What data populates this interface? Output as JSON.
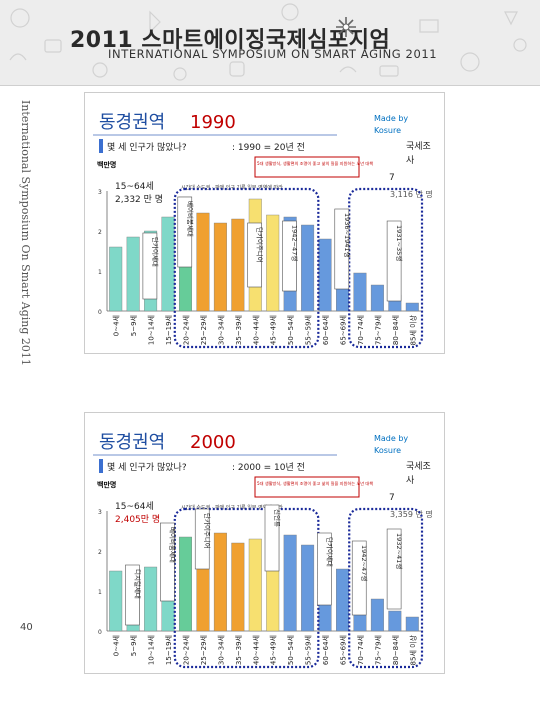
{
  "header": {
    "title_ko": "2011 스마트에이징국제심포지엄",
    "title_en": "INTERNATIONAL SYMPOSIUM ON SMART AGING 2011"
  },
  "side_text": "International Symposium On Smart Aging 2011",
  "page_number": "40",
  "colors": {
    "title_blue": "#1f4ea1",
    "title_red": "#c00000",
    "dotted_navy": "#1a2a9a",
    "made_by": "#0070c0"
  },
  "slides": [
    {
      "title_ko": "동경권역",
      "year": "1990",
      "made_by": "Made by Kosure",
      "question": "몇 세 인구가 많았나?",
      "ref": ": 1990  =  20년 전",
      "unit": "백만명",
      "working_age": "15~64세",
      "working_pop": "2,332 만 명",
      "foreign_label": "국세조사",
      "foreign_num": "7",
      "right_pop": "3,116 만 명",
      "red_box": "5대 생활방식, 생활편의 조명이 좋고 삶의 질을 지원하는 노년 대책",
      "sub_line": "시간대 수도권 · 판매 인구 기록 일부 영역에 따라",
      "chart_data": {
        "type": "bar",
        "categories": [
          "0~4세",
          "5~9세",
          "10~14세",
          "15~19세",
          "20~24세",
          "25~29세",
          "30~34세",
          "35~39세",
          "40~44세",
          "45~49세",
          "50~54세",
          "55~59세",
          "60~64세",
          "65~69세",
          "70~74세",
          "75~79세",
          "80~84세",
          "85세 이상"
        ],
        "values": [
          1.6,
          1.85,
          2.0,
          2.35,
          2.85,
          2.45,
          2.2,
          2.3,
          2.8,
          2.4,
          2.35,
          2.15,
          1.8,
          1.3,
          0.95,
          0.65,
          0.4,
          0.2
        ],
        "bar_colors": [
          "#7fd8c8",
          "#7fd8c8",
          "#7fd8c8",
          "#7fd8c8",
          "#66cc99",
          "#f0a030",
          "#f0a030",
          "#f0a030",
          "#f7e070",
          "#f7e070",
          "#6699dd",
          "#6699dd",
          "#6699dd",
          "#6699dd",
          "#6699dd",
          "#6699dd",
          "#6699dd",
          "#6699dd"
        ],
        "ylim": [
          0,
          3
        ],
        "yticks": [
          "0",
          "1",
          "2",
          "3"
        ]
      },
      "callouts": [
        "단카이세대",
        "베이비붐세대",
        "단카이주니어",
        "1942~47생",
        "1936~1941생",
        "1931~35생"
      ]
    },
    {
      "title_ko": "동경권역",
      "year": "2000",
      "made_by": "Made by Kosure",
      "question": "몇 세 인구가 많았나?",
      "ref": ": 2000  =  10년 전",
      "unit": "백만명",
      "working_age": "15~64세",
      "working_pop": "2,405만 명",
      "foreign_label": "국세조사",
      "foreign_num": "7",
      "right_pop": "3,359 만 명",
      "red_box": "5대 생활방식, 생활편의 조명이 좋고 삶의 질을 지원하는 노년 대책",
      "sub_line": "시간대 수도권 · 판매 인구 기록 일부 영역에 따라",
      "chart_data": {
        "type": "bar",
        "categories": [
          "0~4세",
          "5~9세",
          "10~14세",
          "15~19세",
          "20~24세",
          "25~29세",
          "30~34세",
          "35~39세",
          "40~44세",
          "45~49세",
          "50~54세",
          "55~59세",
          "60~64세",
          "65~69세",
          "70~74세",
          "75~79세",
          "80~84세",
          "85세 이상"
        ],
        "values": [
          1.5,
          1.55,
          1.6,
          1.9,
          2.35,
          2.85,
          2.45,
          2.2,
          2.3,
          2.8,
          2.4,
          2.15,
          1.95,
          1.55,
          1.15,
          0.8,
          0.5,
          0.35
        ],
        "bar_colors": [
          "#7fd8c8",
          "#7fd8c8",
          "#7fd8c8",
          "#7fd8c8",
          "#66cc99",
          "#f0a030",
          "#f0a030",
          "#f0a030",
          "#f7e070",
          "#f7e070",
          "#6699dd",
          "#6699dd",
          "#6699dd",
          "#6699dd",
          "#6699dd",
          "#6699dd",
          "#6699dd",
          "#6699dd"
        ],
        "ylim": [
          0,
          3
        ],
        "yticks": [
          "0",
          "1",
          "2",
          "3"
        ]
      },
      "callouts": [
        "디지털세대",
        "베이비붐세대",
        "단카이주니어",
        "신인류",
        "단카이세대",
        "1942~47생",
        "1932~41생"
      ]
    }
  ]
}
